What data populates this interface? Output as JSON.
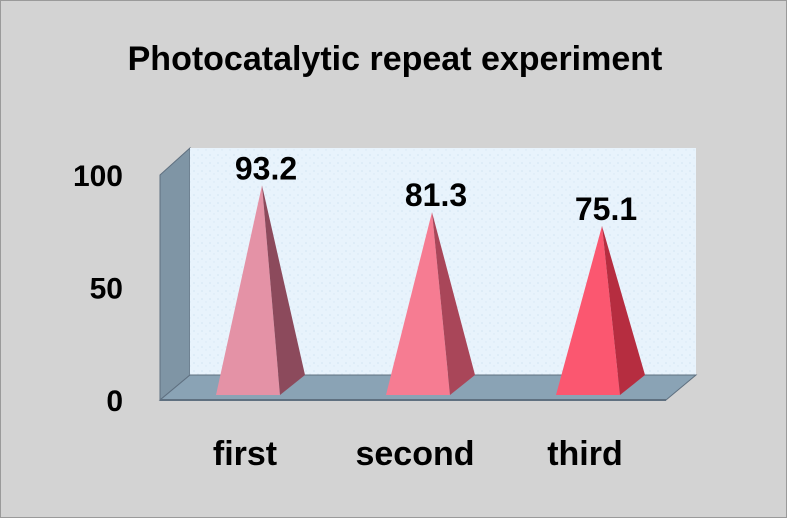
{
  "chart_data": {
    "type": "bar",
    "title": "Photocatalytic repeat experiment",
    "categories": [
      "first",
      "second",
      "third"
    ],
    "values": [
      93.2,
      81.3,
      75.1
    ],
    "value_labels": [
      "93.2",
      "81.3",
      "75.1"
    ],
    "yticks": [
      "0",
      "50",
      "100"
    ],
    "ylim": [
      0,
      100
    ],
    "grid": false,
    "legend": "none",
    "style": "3d-pyramid",
    "colors": {
      "background": "#d3d3d3",
      "wall": "#e6f2fb",
      "floor": "#8aa3b5",
      "side_wall": "#7f95a5",
      "bars": [
        "#e492a6",
        "#f67c92",
        "#fb5770"
      ],
      "bars_dark": [
        "#8c4a5c",
        "#a94659",
        "#b62d40"
      ]
    }
  }
}
